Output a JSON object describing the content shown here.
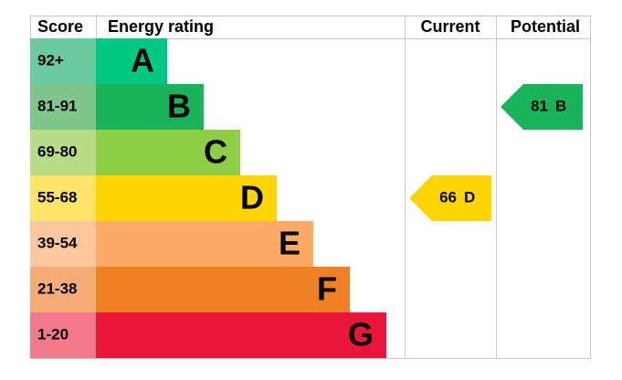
{
  "headers": {
    "score": "Score",
    "rating": "Energy rating",
    "current": "Current",
    "potential": "Potential"
  },
  "bands": [
    {
      "score": "92+",
      "letter": "A",
      "score_color": "#6ccaa0",
      "color": "#00c781"
    },
    {
      "score": "81-91",
      "letter": "B",
      "score_color": "#7ec68a",
      "color": "#19b459"
    },
    {
      "score": "69-80",
      "letter": "C",
      "score_color": "#b9dd86",
      "color": "#8dce46"
    },
    {
      "score": "55-68",
      "letter": "D",
      "score_color": "#ffe36a",
      "color": "#ffd500"
    },
    {
      "score": "39-54",
      "letter": "E",
      "score_color": "#fdc79d",
      "color": "#fcaa65"
    },
    {
      "score": "21-38",
      "letter": "F",
      "score_color": "#f6ad75",
      "color": "#ef8023"
    },
    {
      "score": "1-20",
      "letter": "G",
      "score_color": "#f37a8d",
      "color": "#e9153b"
    }
  ],
  "current": {
    "score": 66,
    "letter": "D"
  },
  "potential": {
    "score": 81,
    "letter": "B"
  }
}
